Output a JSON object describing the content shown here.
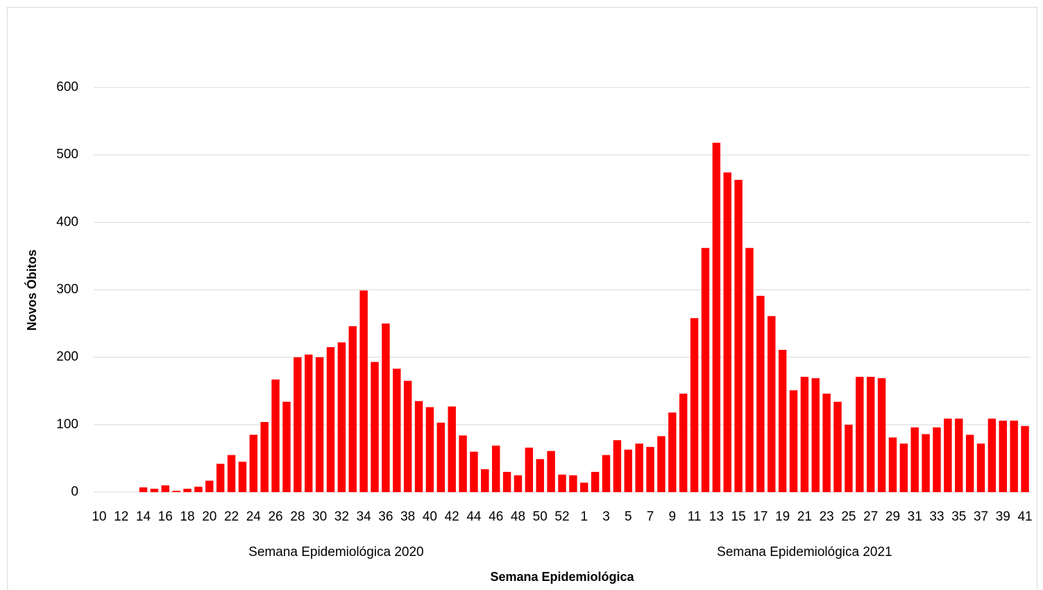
{
  "chart_data": {
    "type": "bar",
    "y_label": "Novos Óbitos",
    "x_label": "Semana Epidemiológica",
    "category_groups": [
      {
        "label": "Semana Epidemiológica 2020",
        "size": 44
      },
      {
        "label": "Semana Epidemiológica 2021",
        "size": 41
      }
    ],
    "categories": [
      "10",
      null,
      "12",
      null,
      "14",
      null,
      "16",
      null,
      "18",
      null,
      "20",
      null,
      "22",
      null,
      "24",
      null,
      "26",
      null,
      "28",
      null,
      "30",
      null,
      "32",
      null,
      "34",
      null,
      "36",
      null,
      "38",
      null,
      "40",
      null,
      "42",
      null,
      "44",
      null,
      "46",
      null,
      "48",
      null,
      "50",
      null,
      "52",
      null,
      "1",
      null,
      "3",
      null,
      "5",
      null,
      "7",
      null,
      "9",
      null,
      "11",
      null,
      "13",
      null,
      "15",
      null,
      "17",
      null,
      "19",
      null,
      "21",
      null,
      "23",
      null,
      "25",
      null,
      "27",
      null,
      "29",
      null,
      "31",
      null,
      "33",
      null,
      "35",
      null,
      "37",
      null,
      "39",
      null,
      "41"
    ],
    "values": [
      0,
      0,
      0,
      0,
      7,
      5,
      10,
      2,
      5,
      8,
      17,
      42,
      55,
      45,
      85,
      104,
      167,
      134,
      200,
      204,
      200,
      215,
      222,
      246,
      299,
      193,
      250,
      183,
      165,
      135,
      126,
      103,
      127,
      84,
      60,
      34,
      69,
      30,
      25,
      66,
      49,
      61,
      26,
      25,
      14,
      30,
      55,
      77,
      63,
      72,
      67,
      83,
      118,
      146,
      258,
      362,
      518,
      474,
      463,
      362,
      291,
      261,
      211,
      151,
      171,
      169,
      146,
      134,
      100,
      171,
      171,
      169,
      81,
      72,
      96,
      86,
      96,
      109,
      109,
      85,
      72,
      109,
      106,
      106,
      98
    ],
    "color": "#ff0000",
    "ylim": [
      0,
      600
    ],
    "yticks": [
      0,
      100,
      200,
      300,
      400,
      500,
      600
    ],
    "grid": true
  }
}
